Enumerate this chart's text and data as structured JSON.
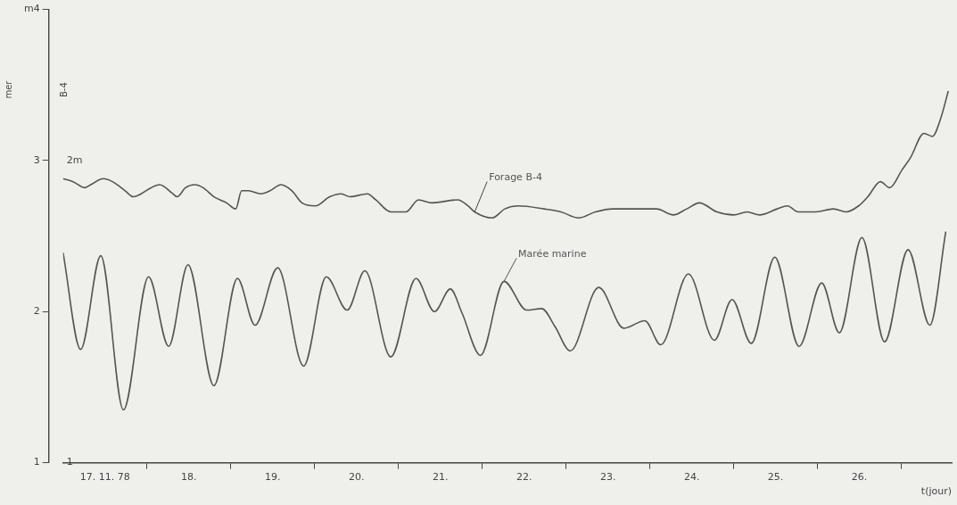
{
  "chart_data": {
    "type": "line",
    "xlabel": "t(jour)",
    "ylabel": "mer",
    "y2label": "B-4",
    "xlim": [
      17,
      27.6
    ],
    "xticks": [
      {
        "value": 17.5,
        "label": "17. 11. 78"
      },
      {
        "value": 18,
        "label": null
      },
      {
        "value": 18.5,
        "label": "18."
      },
      {
        "value": 19,
        "label": null
      },
      {
        "value": 19.5,
        "label": "19."
      },
      {
        "value": 20,
        "label": null
      },
      {
        "value": 20.5,
        "label": "20."
      },
      {
        "value": 21,
        "label": null
      },
      {
        "value": 21.5,
        "label": "21."
      },
      {
        "value": 22,
        "label": null
      },
      {
        "value": 22.5,
        "label": "22."
      },
      {
        "value": 23,
        "label": null
      },
      {
        "value": 23.5,
        "label": "23."
      },
      {
        "value": 24,
        "label": null
      },
      {
        "value": 24.5,
        "label": "24."
      },
      {
        "value": 25,
        "label": null
      },
      {
        "value": 25.5,
        "label": "25."
      },
      {
        "value": 26,
        "label": null
      },
      {
        "value": 26.5,
        "label": "26."
      },
      {
        "value": 27,
        "label": null
      }
    ],
    "ylim": [
      1,
      4
    ],
    "yticks": [
      1,
      2,
      3,
      {
        "value": 4,
        "label": "m4"
      }
    ],
    "y2lim": [
      1,
      2.5
    ],
    "y2ticks": [
      1,
      {
        "value": 2,
        "label": "2m"
      }
    ],
    "legend": false,
    "grid": false,
    "marker": "none",
    "line_style": "solid",
    "series": [
      {
        "name": "Forage B-4",
        "color": "#555555",
        "axis": "y2",
        "x": [
          17.0,
          17.12,
          17.26,
          17.33,
          17.48,
          17.59,
          17.74,
          17.84,
          17.93,
          18.05,
          18.15,
          18.31,
          18.36,
          18.46,
          18.57,
          18.67,
          18.8,
          18.95,
          19.06,
          19.13,
          19.21,
          19.36,
          19.47,
          19.6,
          19.73,
          19.85,
          20.01,
          20.18,
          20.32,
          20.42,
          20.63,
          20.73,
          20.91,
          21.09,
          21.24,
          21.4,
          21.71,
          21.83,
          21.91,
          22.12,
          22.27,
          22.43,
          22.74,
          22.94,
          23.15,
          23.35,
          23.56,
          23.77,
          24.08,
          24.28,
          24.44,
          24.59,
          24.8,
          25.0,
          25.16,
          25.31,
          25.52,
          25.64,
          25.77,
          25.98,
          26.19,
          26.34,
          26.49,
          26.6,
          26.75,
          26.86,
          27.01,
          27.11,
          27.27,
          27.37,
          27.47,
          27.56
        ],
        "values": [
          1.94,
          1.93,
          1.91,
          1.92,
          1.94,
          1.93,
          1.9,
          1.88,
          1.89,
          1.91,
          1.92,
          1.89,
          1.88,
          1.91,
          1.92,
          1.91,
          1.88,
          1.86,
          1.84,
          1.9,
          1.9,
          1.89,
          1.9,
          1.92,
          1.9,
          1.86,
          1.85,
          1.88,
          1.89,
          1.88,
          1.89,
          1.87,
          1.83,
          1.83,
          1.87,
          1.86,
          1.87,
          1.85,
          1.83,
          1.81,
          1.84,
          1.85,
          1.84,
          1.83,
          1.81,
          1.83,
          1.84,
          1.84,
          1.84,
          1.82,
          1.84,
          1.86,
          1.83,
          1.82,
          1.83,
          1.82,
          1.84,
          1.85,
          1.83,
          1.83,
          1.84,
          1.83,
          1.85,
          1.88,
          1.93,
          1.91,
          1.97,
          2.01,
          2.09,
          2.08,
          2.14,
          2.23
        ]
      },
      {
        "name": "Marée marine",
        "color": "#555555",
        "x": [
          17.0,
          17.21,
          17.45,
          17.72,
          18.02,
          18.26,
          18.49,
          18.8,
          19.08,
          19.29,
          19.56,
          19.87,
          20.14,
          20.39,
          20.6,
          20.91,
          21.21,
          21.43,
          21.62,
          21.76,
          21.98,
          22.26,
          22.53,
          22.71,
          22.87,
          23.05,
          23.39,
          23.69,
          23.94,
          24.13,
          24.46,
          24.77,
          24.98,
          25.21,
          25.49,
          25.78,
          26.05,
          26.26,
          26.53,
          26.8,
          27.08,
          27.34,
          27.53
        ],
        "values": [
          2.39,
          1.75,
          2.37,
          1.35,
          2.23,
          1.77,
          2.31,
          1.51,
          2.22,
          1.91,
          2.29,
          1.64,
          2.23,
          2.01,
          2.27,
          1.7,
          2.22,
          2.0,
          2.15,
          1.99,
          1.71,
          2.2,
          2.01,
          2.02,
          1.9,
          1.74,
          2.16,
          1.89,
          1.94,
          1.78,
          2.25,
          1.81,
          2.08,
          1.79,
          2.36,
          1.77,
          2.19,
          1.86,
          2.49,
          1.8,
          2.41,
          1.91,
          2.53
        ]
      }
    ]
  }
}
